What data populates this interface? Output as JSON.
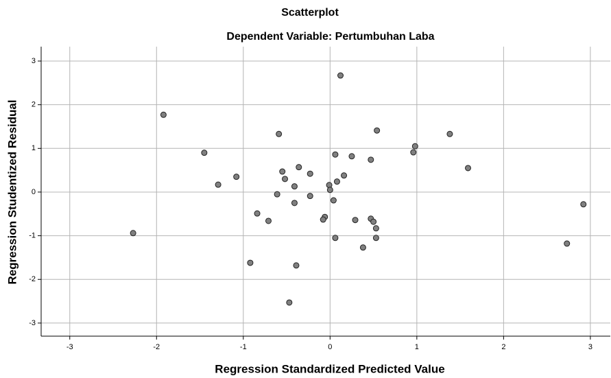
{
  "chart_data": {
    "type": "scatter",
    "title": "Scatterplot",
    "subtitle": "Dependent Variable: Pertumbuhan Laba",
    "x_label": "Regression Standardized Predicted Value",
    "y_label": "Regression Studentized Residual",
    "xlim": [
      -3.33,
      3.23
    ],
    "ylim": [
      -3.3,
      3.33
    ],
    "xticks": [
      -3,
      -2,
      -1,
      0,
      1,
      2,
      3
    ],
    "yticks": [
      -3,
      -2,
      -1,
      0,
      1,
      2,
      3
    ],
    "grid": true,
    "series": [
      {
        "color": "#808080",
        "x": [
          0.12,
          -1.92,
          0.54,
          -0.59,
          1.38,
          0.98,
          0.96,
          -1.45,
          0.06,
          0.25,
          0.47,
          1.59,
          -0.36,
          -0.55,
          -0.23,
          -1.08,
          0.16,
          -0.52,
          0.08,
          -1.29,
          -0.41,
          -0.01,
          0.0,
          -0.61,
          -0.23,
          0.04,
          -0.41,
          -0.84,
          -0.06,
          -0.08,
          -0.71,
          0.29,
          0.47,
          0.5,
          0.53,
          -2.27,
          0.06,
          0.53,
          2.73,
          2.92,
          0.38,
          -0.92,
          -0.39,
          -0.47
        ],
        "values": [
          2.67,
          1.77,
          1.41,
          1.33,
          1.33,
          1.05,
          0.91,
          0.9,
          0.86,
          0.82,
          0.74,
          0.55,
          0.57,
          0.47,
          0.42,
          0.35,
          0.38,
          0.3,
          0.24,
          0.17,
          0.13,
          0.16,
          0.05,
          -0.05,
          -0.09,
          -0.19,
          -0.25,
          -0.49,
          -0.57,
          -0.63,
          -0.66,
          -0.64,
          -0.61,
          -0.68,
          -0.83,
          -0.94,
          -1.05,
          -1.05,
          -1.18,
          -0.28,
          -1.27,
          -1.62,
          -1.68,
          -2.53
        ]
      }
    ]
  }
}
